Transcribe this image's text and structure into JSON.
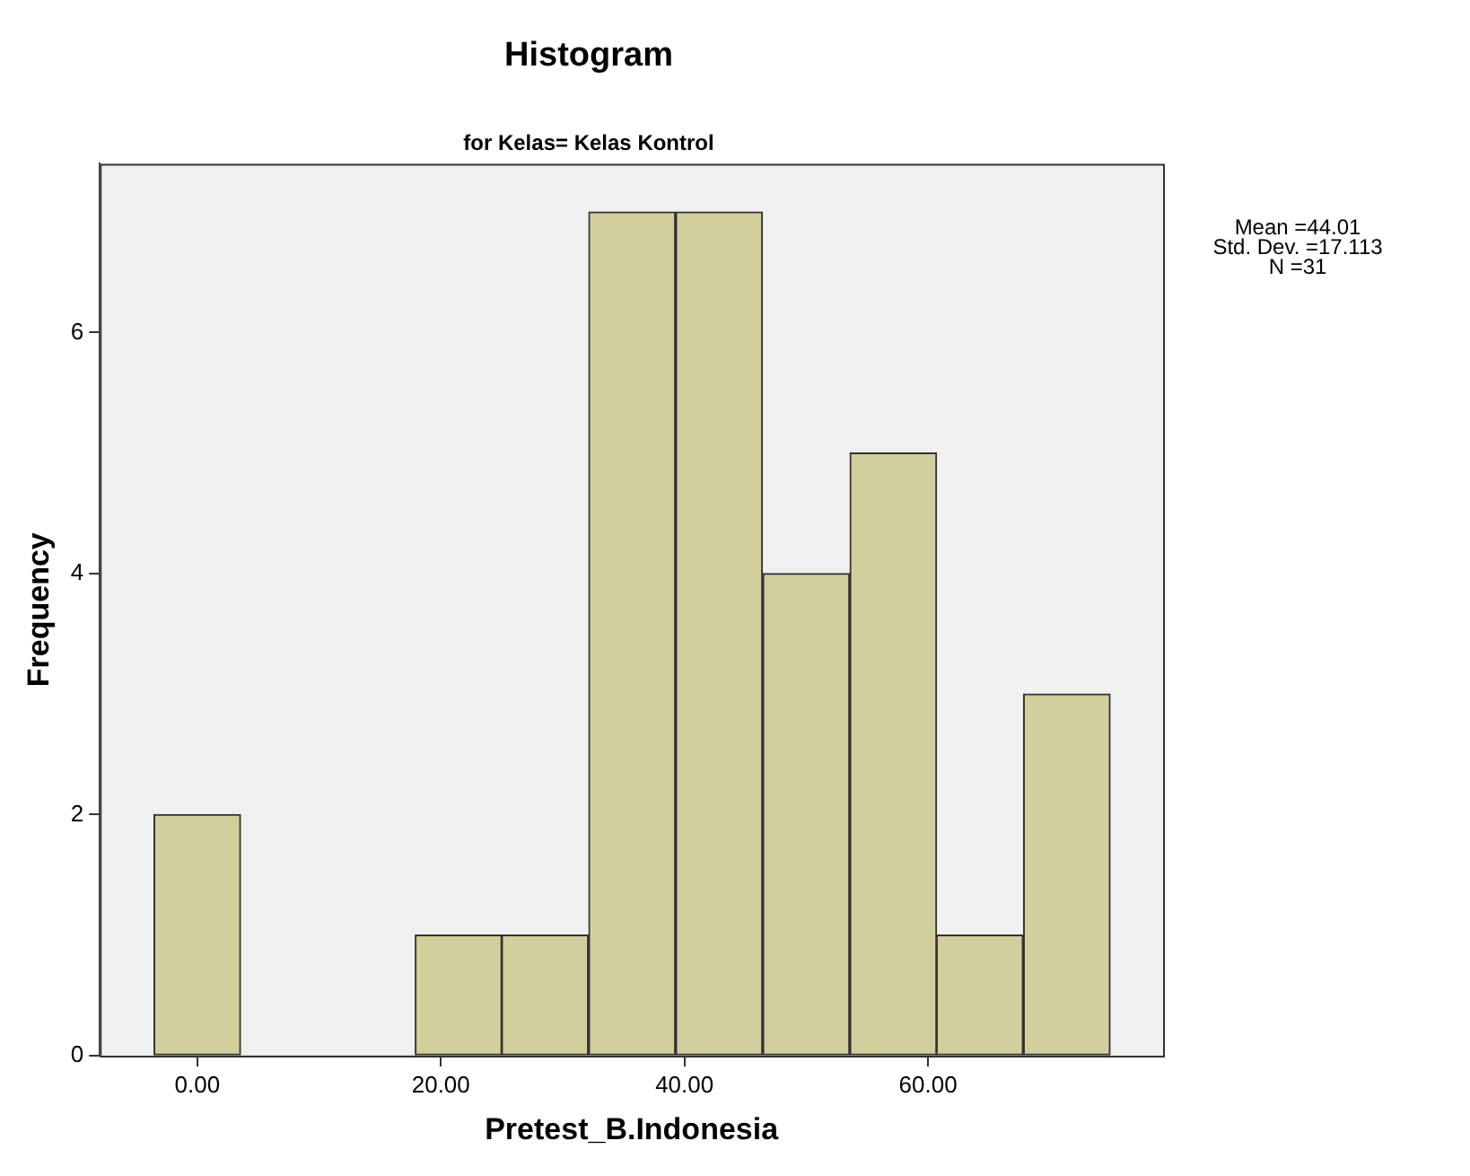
{
  "chart_data": {
    "type": "histogram",
    "title": "Histogram",
    "subtitle": "for Kelas= Kelas Kontrol",
    "xlabel": "Pretest_B.Indonesia",
    "ylabel": "Frequency",
    "bins": [
      -3.6,
      3.6,
      10.7,
      17.9,
      25.0,
      32.1,
      39.3,
      46.4,
      53.6,
      60.7,
      67.8,
      75.0
    ],
    "values": [
      2,
      0,
      0,
      1,
      1,
      7,
      7,
      4,
      5,
      1,
      3
    ],
    "color": "#d3cf9c",
    "xlim": [
      -8,
      79.3
    ],
    "xticks": [
      {
        "value": 0,
        "label": "0.00"
      },
      {
        "value": 20,
        "label": "20.00"
      },
      {
        "value": 40,
        "label": "40.00"
      },
      {
        "value": 60,
        "label": "60.00"
      }
    ],
    "ylim": [
      0,
      7.4
    ],
    "yticks": [
      0,
      2,
      4,
      6
    ],
    "grid": false,
    "legend": false,
    "annotations": [
      "Mean =44.01",
      "Std. Dev. =17.113",
      "N =31"
    ]
  }
}
